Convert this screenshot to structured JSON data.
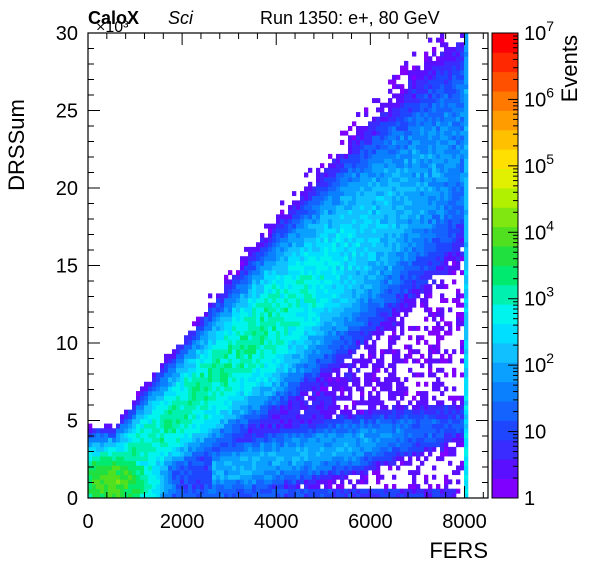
{
  "chart_data": {
    "type": "heatmap",
    "title": "Run 1350: e+, 80 GeV",
    "brand": "CaloX",
    "brand_sub": "Sci",
    "xlabel": "FERS",
    "ylabel": "DRSSum",
    "y_multiplier": "×10³",
    "zlabel": "Events",
    "xlim": [
      0,
      8500
    ],
    "ylim": [
      0,
      30
    ],
    "z_log_range": [
      0,
      7
    ],
    "x_ticks": [
      0,
      2000,
      4000,
      6000,
      8000
    ],
    "x_tick_labels": [
      "0",
      "2000",
      "4000",
      "6000",
      "8000"
    ],
    "y_ticks": [
      0,
      5,
      10,
      15,
      20,
      25,
      30
    ],
    "y_tick_labels": [
      "0",
      "5",
      "10",
      "15",
      "20",
      "25",
      "30"
    ],
    "z_ticks": [
      {
        "value": 1,
        "base": "1",
        "exp": ""
      },
      {
        "value": 10,
        "base": "10",
        "exp": ""
      },
      {
        "value": 100,
        "base": "10",
        "exp": "2"
      },
      {
        "value": 1000,
        "base": "10",
        "exp": "3"
      },
      {
        "value": 10000,
        "base": "10",
        "exp": "4"
      },
      {
        "value": 100000,
        "base": "10",
        "exp": "5"
      },
      {
        "value": 1000000,
        "base": "10",
        "exp": "6"
      },
      {
        "value": 10000000,
        "base": "10",
        "exp": "7"
      }
    ],
    "palette": [
      "#7f00ff",
      "#5a10ff",
      "#3a2bff",
      "#1f46ff",
      "#1463ff",
      "#0a80ff",
      "#0aa0ff",
      "#10c0ff",
      "#00dfff",
      "#00f4ee",
      "#00f0b0",
      "#00ea70",
      "#20e040",
      "#50e020",
      "#80e810",
      "#b0f000",
      "#e0f000",
      "#ffe000",
      "#ffc000",
      "#ff9c00",
      "#ff7800",
      "#ff5000",
      "#ff2800",
      "#ff0000"
    ],
    "distribution": {
      "description_free": true,
      "main_band": {
        "slope": 0.00285,
        "sigma_base": 1.1,
        "sigma_growth": 0.00045,
        "peak_log_counts": 3.1,
        "falloff_x": 3800
      },
      "lower_band": {
        "slope": 0.00062,
        "sigma": 0.9,
        "start_x": 2600,
        "peak_log_counts": 2.0
      },
      "core_blob": {
        "x": 500,
        "y": 1.0,
        "sx": 700,
        "sy": 1.6,
        "peak_log_counts": 3.9
      },
      "saturation_column": {
        "x": 8000,
        "peak_log_counts": 2.6
      }
    }
  }
}
